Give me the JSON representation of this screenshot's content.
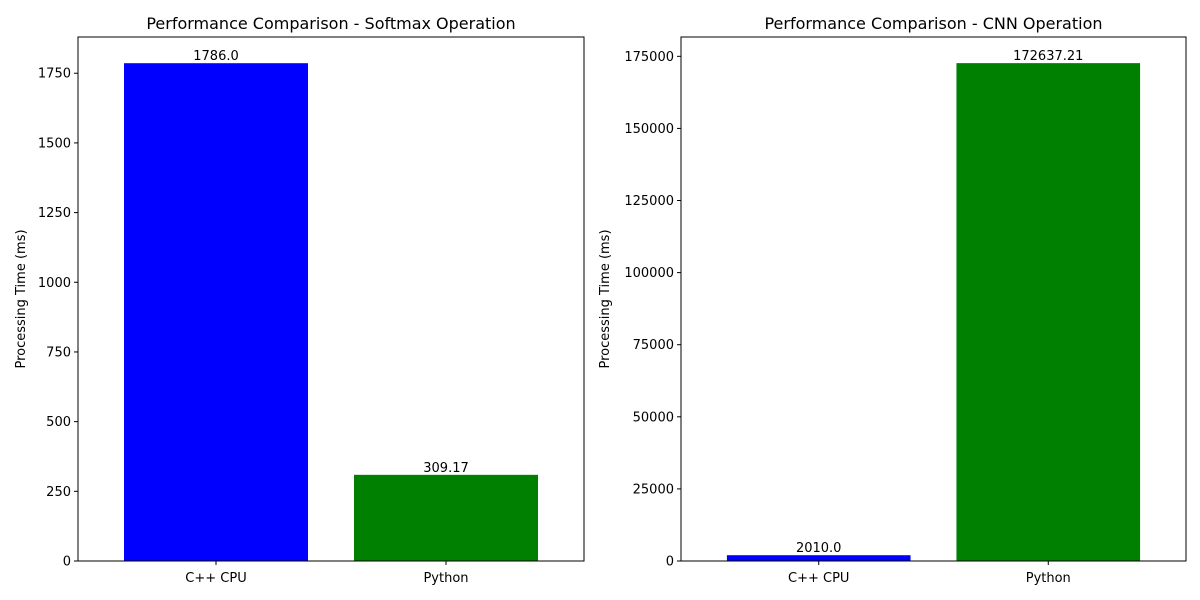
{
  "chart_data": [
    {
      "type": "bar",
      "title": "Performance Comparison - Softmax Operation",
      "xlabel": "",
      "ylabel": "Processing Time (ms)",
      "categories": [
        "C++ CPU",
        "Python"
      ],
      "values": [
        1786.0,
        309.17
      ],
      "value_labels": [
        "1786.0",
        "309.17"
      ],
      "colors": [
        "#0000ff",
        "#008000"
      ],
      "ylim": [
        0,
        1880
      ],
      "yticks": [
        0,
        250,
        500,
        750,
        1000,
        1250,
        1500,
        1750
      ],
      "ytick_labels": [
        "0",
        "250",
        "500",
        "750",
        "1000",
        "1250",
        "1500",
        "1750"
      ],
      "grid": false,
      "legend": "none"
    },
    {
      "type": "bar",
      "title": "Performance Comparison - CNN Operation",
      "xlabel": "",
      "ylabel": "Processing Time (ms)",
      "categories": [
        "C++ CPU",
        "Python"
      ],
      "values": [
        2010.0,
        172637.21
      ],
      "value_labels": [
        "2010.0",
        "172637.21"
      ],
      "colors": [
        "#0000ff",
        "#008000"
      ],
      "ylim": [
        0,
        181700
      ],
      "yticks": [
        0,
        25000,
        50000,
        75000,
        100000,
        125000,
        150000,
        175000
      ],
      "ytick_labels": [
        "0",
        "25000",
        "50000",
        "75000",
        "100000",
        "125000",
        "150000",
        "175000"
      ],
      "grid": false,
      "legend": "none"
    }
  ]
}
